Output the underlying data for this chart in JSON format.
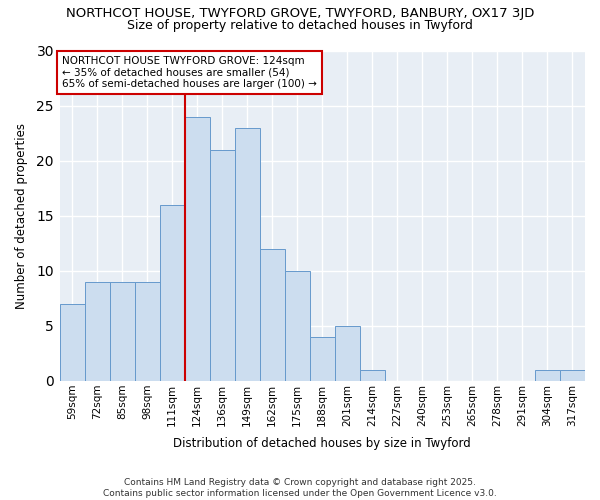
{
  "title_line1": "NORTHCOT HOUSE, TWYFORD GROVE, TWYFORD, BANBURY, OX17 3JD",
  "title_line2": "Size of property relative to detached houses in Twyford",
  "xlabel": "Distribution of detached houses by size in Twyford",
  "ylabel": "Number of detached properties",
  "categories": [
    "59sqm",
    "72sqm",
    "85sqm",
    "98sqm",
    "111sqm",
    "124sqm",
    "136sqm",
    "149sqm",
    "162sqm",
    "175sqm",
    "188sqm",
    "201sqm",
    "214sqm",
    "227sqm",
    "240sqm",
    "253sqm",
    "265sqm",
    "278sqm",
    "291sqm",
    "304sqm",
    "317sqm"
  ],
  "values": [
    7,
    9,
    9,
    9,
    16,
    24,
    21,
    23,
    12,
    10,
    4,
    5,
    1,
    0,
    0,
    0,
    0,
    0,
    0,
    1,
    1
  ],
  "bar_color": "#ccddef",
  "bar_edge_color": "#6699cc",
  "red_line_index": 5,
  "ylim": [
    0,
    30
  ],
  "yticks": [
    0,
    5,
    10,
    15,
    20,
    25,
    30
  ],
  "annotation_title": "NORTHCOT HOUSE TWYFORD GROVE: 124sqm",
  "annotation_line2": "← 35% of detached houses are smaller (54)",
  "annotation_line3": "65% of semi-detached houses are larger (100) →",
  "annotation_box_facecolor": "#ffffff",
  "annotation_box_edgecolor": "#cc0000",
  "fig_background": "#ffffff",
  "axes_background": "#e8eef5",
  "grid_color": "#ffffff",
  "footer_line1": "Contains HM Land Registry data © Crown copyright and database right 2025.",
  "footer_line2": "Contains public sector information licensed under the Open Government Licence v3.0."
}
